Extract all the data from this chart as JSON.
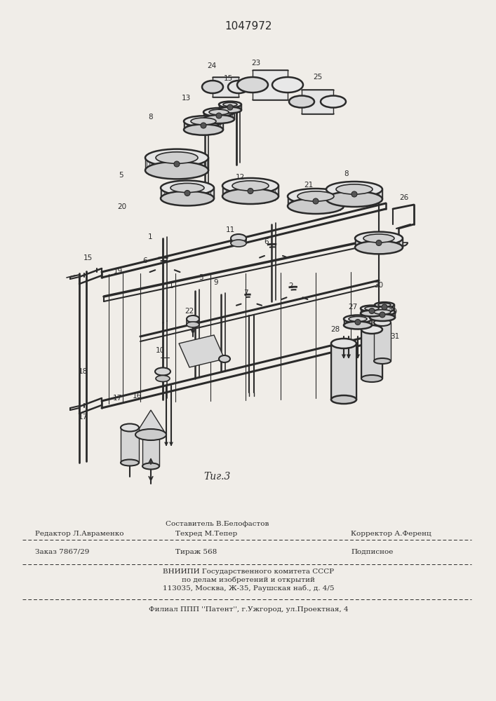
{
  "patent_number": "1047972",
  "fig_label": "Τиг.3",
  "background_color": "#f0ede8",
  "line_color": "#2a2a2a",
  "editor_line": "Редактор Л.Авраменко",
  "compiler_line": "Составитель В.Белофастов",
  "techred_line": "Техред М.Тепер",
  "corrector_line": "Корректор А.Ференц",
  "order_line": "Заказ 7867/29",
  "tirazh_line": "Тираж 568",
  "podpisnoe_line": "Подписное",
  "vnipi_line1": "ВНИИПИ Государственного комитета СССР",
  "vnipi_line2": "по делам изобретений и открытий",
  "vnipi_line3": "113035, Москва, Ж-35, Раушская наб., д. 4/5",
  "filial_line": "Филиал ППП ''Патент'', г.Ужгород, ул.Проектная, 4"
}
